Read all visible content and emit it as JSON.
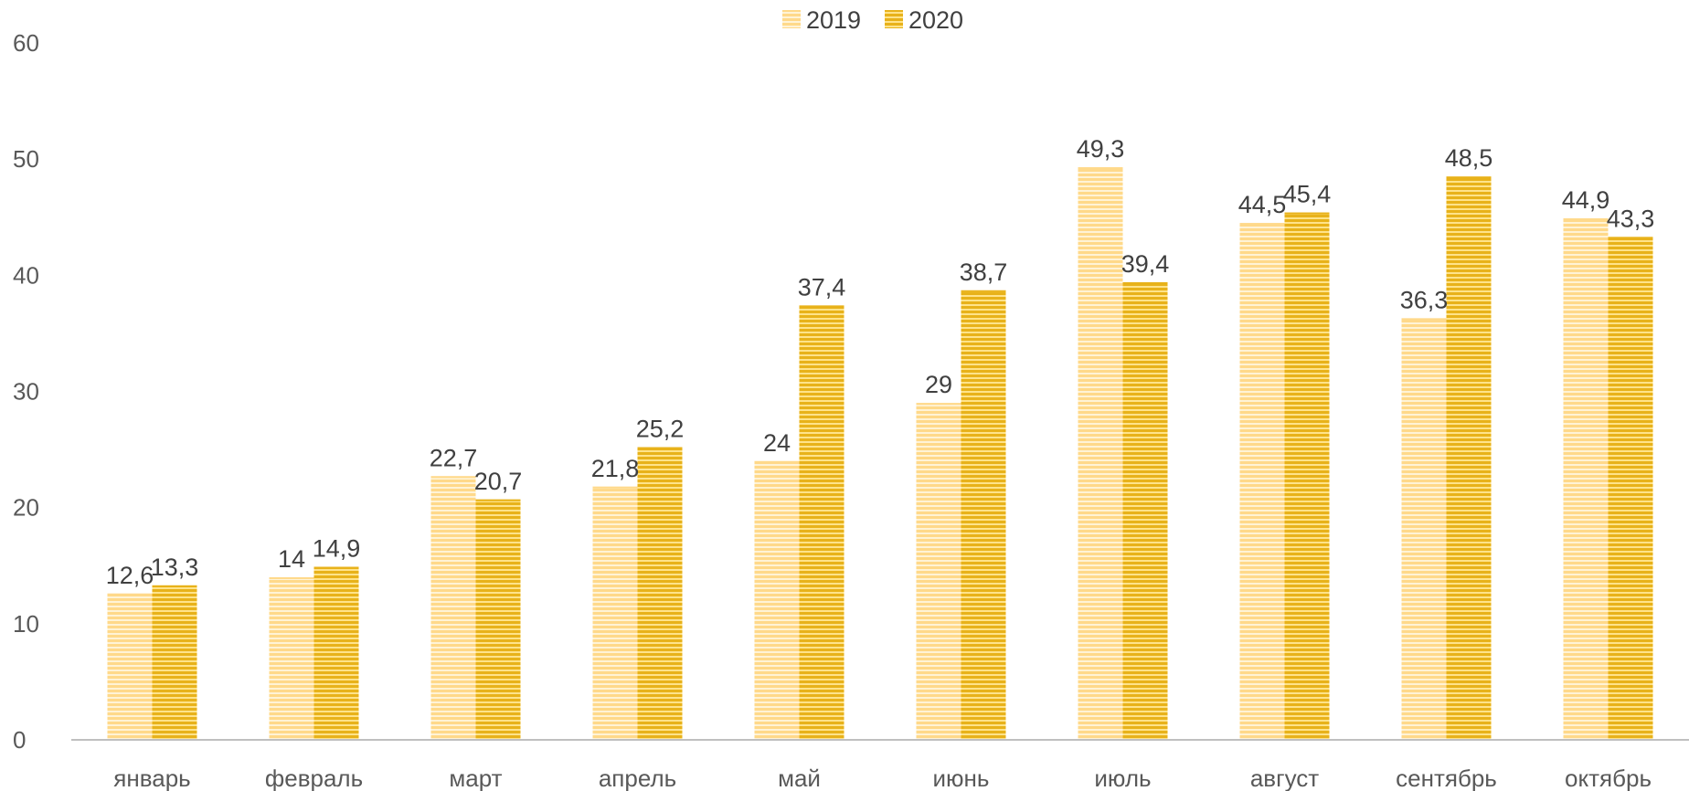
{
  "chart_data": {
    "type": "bar",
    "categories": [
      "январь",
      "февраль",
      "март",
      "апрель",
      "май",
      "июнь",
      "июль",
      "август",
      "сентябрь",
      "октябрь"
    ],
    "series": [
      {
        "name": "2019",
        "values": [
          12.6,
          14,
          22.7,
          21.8,
          24,
          29,
          49.3,
          44.5,
          36.3,
          44.9
        ],
        "labels": [
          "12,6",
          "14",
          "22,7",
          "21,8",
          "24",
          "29",
          "49,3",
          "44,5",
          "36,3",
          "44,9"
        ],
        "color": "#FFD98A",
        "stripe": "#FFF3D6"
      },
      {
        "name": "2020",
        "values": [
          13.3,
          14.9,
          20.7,
          25.2,
          37.4,
          38.7,
          39.4,
          45.4,
          48.5,
          43.3
        ],
        "labels": [
          "13,3",
          "14,9",
          "20,7",
          "25,2",
          "37,4",
          "38,7",
          "39,4",
          "45,4",
          "48,5",
          "43,3"
        ],
        "color": "#E8B21A",
        "stripe": "#FFE38A"
      }
    ],
    "yticks": [
      "0",
      "10",
      "20",
      "30",
      "40",
      "50",
      "60"
    ],
    "ylim": [
      0,
      60
    ],
    "legend_position": "top-center",
    "grid": false,
    "axis_color": "#BFBFBF"
  }
}
